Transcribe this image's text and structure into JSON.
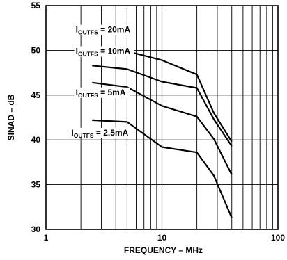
{
  "chart_data": {
    "type": "line",
    "xscale": "log",
    "xlim": [
      1,
      100
    ],
    "ylim": [
      30,
      55
    ],
    "grid": true,
    "xlabel": "FREQUENCY – MHz",
    "ylabel": "SINAD – dB",
    "x_ticks": [
      "1",
      "10",
      "100"
    ],
    "y_ticks": [
      "55",
      "50",
      "45",
      "40",
      "35",
      "30"
    ],
    "series": [
      {
        "name": "IOUTFS = 20mA",
        "label_main": "I",
        "label_sub": "OUTFS",
        "label_rest": " = 20mA",
        "points": [
          [
            2.5,
            50.2
          ],
          [
            5,
            49.9
          ],
          [
            10,
            48.9
          ],
          [
            20,
            47.3
          ],
          [
            28,
            43.0
          ],
          [
            40,
            39.8
          ]
        ]
      },
      {
        "name": "IOUTFS = 10mA",
        "label_main": "I",
        "label_sub": "OUTFS",
        "label_rest": " = 10mA",
        "points": [
          [
            2.5,
            48.3
          ],
          [
            5,
            47.9
          ],
          [
            10,
            46.5
          ],
          [
            20,
            45.8
          ],
          [
            28,
            42.3
          ],
          [
            40,
            39.3
          ]
        ]
      },
      {
        "name": "IOUTFS = 5mA",
        "label_main": "I",
        "label_sub": "OUTFS",
        "label_rest": " = 5mA",
        "points": [
          [
            2.5,
            46.4
          ],
          [
            5,
            45.9
          ],
          [
            10,
            43.8
          ],
          [
            20,
            42.6
          ],
          [
            28,
            40.1
          ],
          [
            40,
            36.1
          ]
        ]
      },
      {
        "name": "IOUTFS = 2.5mA",
        "label_main": "I",
        "label_sub": "OUTFS",
        "label_rest": " = 2.5mA",
        "points": [
          [
            2.5,
            42.2
          ],
          [
            5,
            42.0
          ],
          [
            10,
            39.2
          ],
          [
            20,
            38.6
          ],
          [
            28,
            36.0
          ],
          [
            40,
            31.3
          ]
        ]
      }
    ]
  }
}
